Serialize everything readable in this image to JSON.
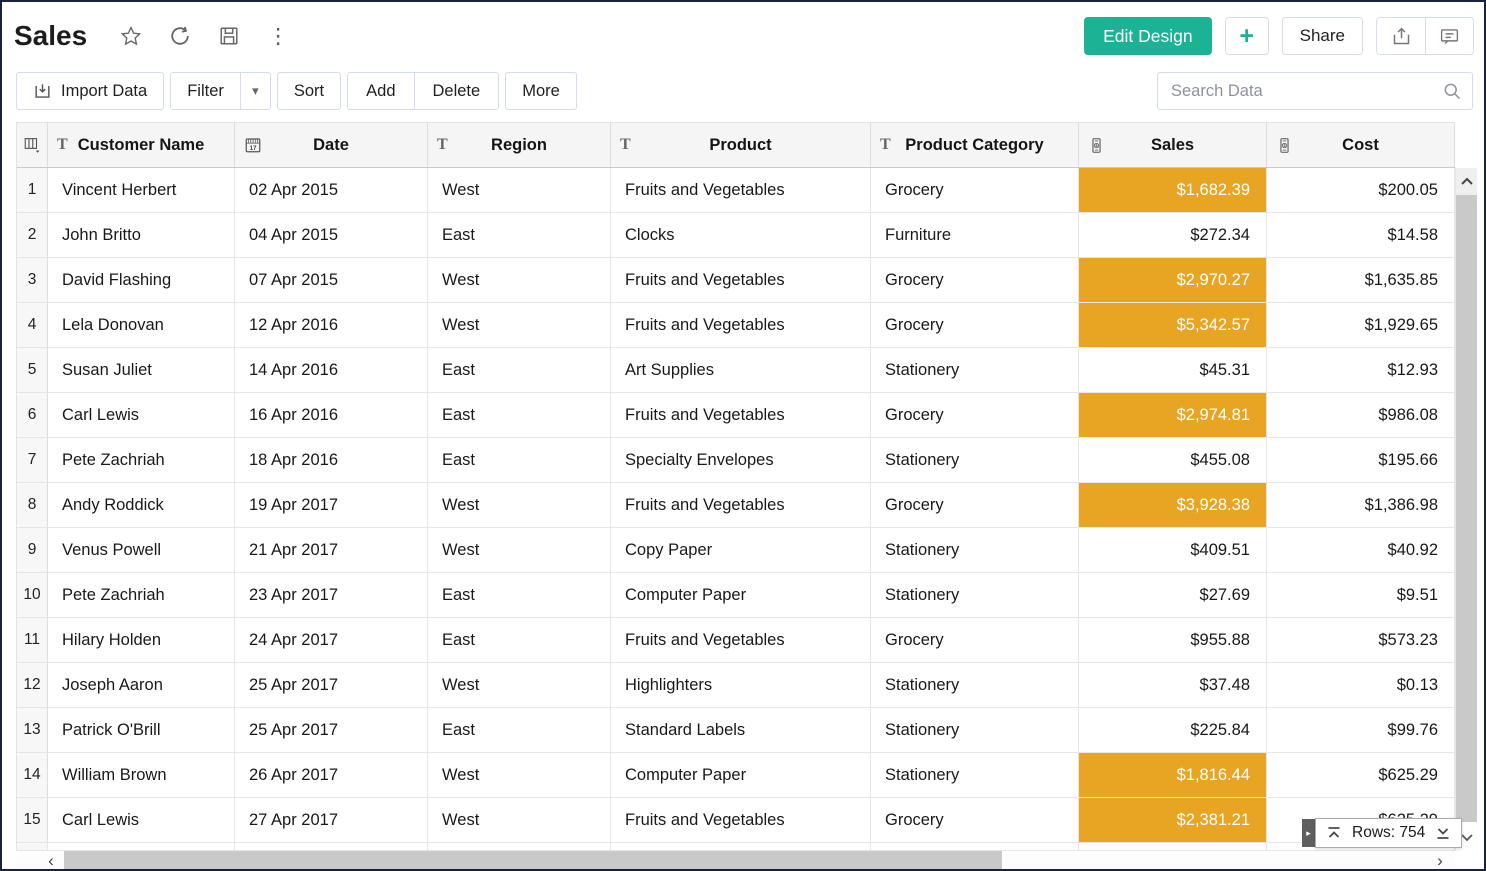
{
  "header": {
    "title": "Sales",
    "actions": {
      "edit_design": "Edit Design",
      "add_new": "+",
      "share": "Share"
    }
  },
  "toolbar": {
    "import_data": "Import Data",
    "filter": "Filter",
    "sort": "Sort",
    "add": "Add",
    "delete": "Delete",
    "more": "More",
    "search_placeholder": "Search Data"
  },
  "table": {
    "columns": [
      {
        "key": "customer",
        "label": "Customer Name",
        "type": "text"
      },
      {
        "key": "date",
        "label": "Date",
        "type": "date"
      },
      {
        "key": "region",
        "label": "Region",
        "type": "text"
      },
      {
        "key": "product",
        "label": "Product",
        "type": "text"
      },
      {
        "key": "category",
        "label": "Product Category",
        "type": "text"
      },
      {
        "key": "sales",
        "label": "Sales",
        "type": "currency"
      },
      {
        "key": "cost",
        "label": "Cost",
        "type": "currency"
      }
    ],
    "rows": [
      {
        "num": "1",
        "customer": "Vincent Herbert",
        "date": "02 Apr 2015",
        "region": "West",
        "product": "Fruits and Vegetables",
        "category": "Grocery",
        "sales": "$1,682.39",
        "sales_highlighted": true,
        "cost": "$200.05"
      },
      {
        "num": "2",
        "customer": "John Britto",
        "date": "04 Apr 2015",
        "region": "East",
        "product": "Clocks",
        "category": "Furniture",
        "sales": "$272.34",
        "sales_highlighted": false,
        "cost": "$14.58"
      },
      {
        "num": "3",
        "customer": "David Flashing",
        "date": "07 Apr 2015",
        "region": "West",
        "product": "Fruits and Vegetables",
        "category": "Grocery",
        "sales": "$2,970.27",
        "sales_highlighted": true,
        "cost": "$1,635.85"
      },
      {
        "num": "4",
        "customer": "Lela Donovan",
        "date": "12 Apr 2016",
        "region": "West",
        "product": "Fruits and Vegetables",
        "category": "Grocery",
        "sales": "$5,342.57",
        "sales_highlighted": true,
        "cost": "$1,929.65"
      },
      {
        "num": "5",
        "customer": "Susan Juliet",
        "date": "14 Apr 2016",
        "region": "East",
        "product": "Art Supplies",
        "category": "Stationery",
        "sales": "$45.31",
        "sales_highlighted": false,
        "cost": "$12.93"
      },
      {
        "num": "6",
        "customer": "Carl Lewis",
        "date": "16 Apr 2016",
        "region": "East",
        "product": "Fruits and Vegetables",
        "category": "Grocery",
        "sales": "$2,974.81",
        "sales_highlighted": true,
        "cost": "$986.08"
      },
      {
        "num": "7",
        "customer": "Pete Zachriah",
        "date": "18 Apr 2016",
        "region": "East",
        "product": "Specialty Envelopes",
        "category": "Stationery",
        "sales": "$455.08",
        "sales_highlighted": false,
        "cost": "$195.66"
      },
      {
        "num": "8",
        "customer": "Andy Roddick",
        "date": "19 Apr 2017",
        "region": "West",
        "product": "Fruits and Vegetables",
        "category": "Grocery",
        "sales": "$3,928.38",
        "sales_highlighted": true,
        "cost": "$1,386.98"
      },
      {
        "num": "9",
        "customer": "Venus Powell",
        "date": "21 Apr 2017",
        "region": "West",
        "product": "Copy Paper",
        "category": "Stationery",
        "sales": "$409.51",
        "sales_highlighted": false,
        "cost": "$40.92"
      },
      {
        "num": "10",
        "customer": "Pete Zachriah",
        "date": "23 Apr 2017",
        "region": "East",
        "product": "Computer Paper",
        "category": "Stationery",
        "sales": "$27.69",
        "sales_highlighted": false,
        "cost": "$9.51"
      },
      {
        "num": "11",
        "customer": "Hilary Holden",
        "date": "24 Apr 2017",
        "region": "East",
        "product": "Fruits and Vegetables",
        "category": "Grocery",
        "sales": "$955.88",
        "sales_highlighted": false,
        "cost": "$573.23"
      },
      {
        "num": "12",
        "customer": "Joseph Aaron",
        "date": "25 Apr 2017",
        "region": "West",
        "product": "Highlighters",
        "category": "Stationery",
        "sales": "$37.48",
        "sales_highlighted": false,
        "cost": "$0.13"
      },
      {
        "num": "13",
        "customer": "Patrick O'Brill",
        "date": "25 Apr 2017",
        "region": "East",
        "product": "Standard Labels",
        "category": "Stationery",
        "sales": "$225.84",
        "sales_highlighted": false,
        "cost": "$99.76"
      },
      {
        "num": "14",
        "customer": "William Brown",
        "date": "26 Apr 2017",
        "region": "West",
        "product": "Computer Paper",
        "category": "Stationery",
        "sales": "$1,816.44",
        "sales_highlighted": true,
        "cost": "$625.29"
      },
      {
        "num": "15",
        "customer": "Carl Lewis",
        "date": "27 Apr 2017",
        "region": "West",
        "product": "Fruits and Vegetables",
        "category": "Grocery",
        "sales": "$2,381.21",
        "sales_highlighted": true,
        "cost": "$625.29"
      }
    ]
  },
  "footer": {
    "rows_indicator": "Rows: 754"
  },
  "glyphs": {
    "caret_down": "▾",
    "kebab": "⋮",
    "chevron_left": "‹",
    "chevron_right": "›",
    "tab_arrow": "▸"
  },
  "colors": {
    "accent_green": "#1cb394",
    "highlight_orange": "#e8a524",
    "header_bg": "#f5f5f6"
  }
}
